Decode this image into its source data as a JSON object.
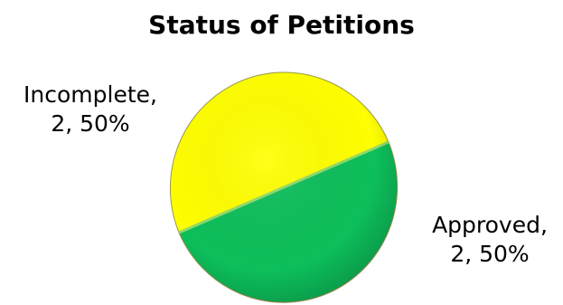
{
  "chart_data": {
    "type": "pie",
    "title": "Status of Petitions",
    "slices": [
      {
        "name": "Incomplete",
        "value": 2,
        "percent": "50%",
        "color": "#ffff00",
        "label_line1": "Incomplete,",
        "label_line2": "2, 50%"
      },
      {
        "name": "Approved",
        "value": 2,
        "percent": "50%",
        "color": "#0dbf5b",
        "label_line1": "Approved,",
        "label_line2": "2, 50%"
      }
    ],
    "legend": "none",
    "data_labels": "outside"
  }
}
